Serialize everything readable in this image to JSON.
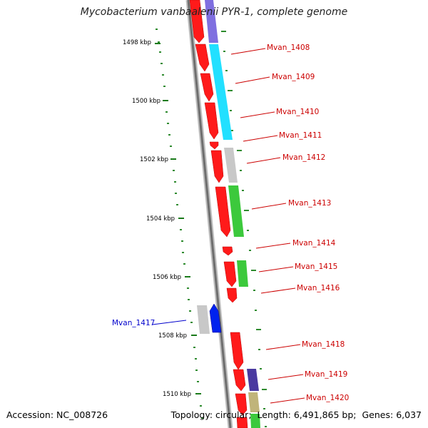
{
  "title": "Mycobacterium vanbaalenii PYR-1, complete genome",
  "footer": {
    "accession_label": "Accession:",
    "accession": "NC_008726",
    "topology_label": "Topology:",
    "topology": "circular;",
    "length_label": "Length:",
    "length": "6,491,865 bp;",
    "genes_label": "Genes:",
    "genes": "6,037"
  },
  "ticks": [
    "1498 kbp",
    "1500 kbp",
    "1502 kbp",
    "1504 kbp",
    "1506 kbp",
    "1508 kbp",
    "1510 kbp"
  ],
  "genes": [
    "Mvan_1408",
    "Mvan_1409",
    "Mvan_1410",
    "Mvan_1411",
    "Mvan_1412",
    "Mvan_1413",
    "Mvan_1414",
    "Mvan_1415",
    "Mvan_1416",
    "Mvan_1417",
    "Mvan_1418",
    "Mvan_1419",
    "Mvan_1420"
  ],
  "colors": {
    "label_default": "#cc0000",
    "label_highlight": "#0000cc",
    "cds": "#ff0000",
    "tick": "#1a7a1a",
    "backbone": "#7a7a7a"
  }
}
